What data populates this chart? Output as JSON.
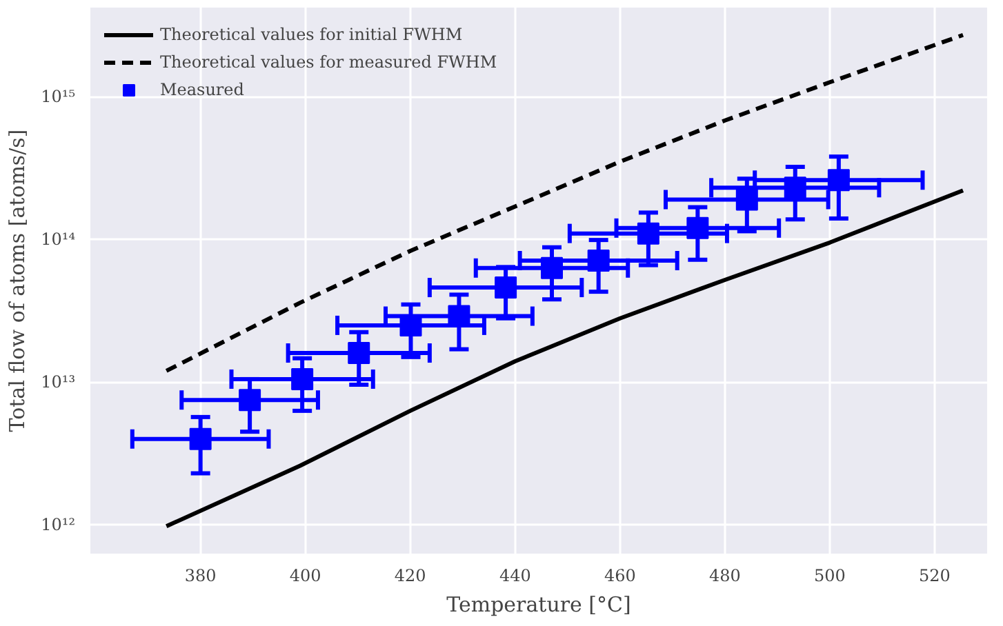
{
  "chart_data": {
    "type": "line",
    "xlabel": "Temperature [°C]",
    "ylabel": "Total flow of atoms [atoms/s]",
    "log": "y",
    "grid": true,
    "legend": "top left",
    "xlim": [
      359,
      530
    ],
    "xticks": [
      380,
      400,
      420,
      440,
      460,
      480,
      500,
      520
    ],
    "ylim": [
      630000000000.0,
      4200000000000000.0
    ],
    "yticks": [
      {
        "value": 1000000000000.0,
        "label": "10¹²"
      },
      {
        "value": 10000000000000.0,
        "label": "10¹³"
      },
      {
        "value": 100000000000000.0,
        "label": "10¹⁴"
      },
      {
        "value": 1000000000000000.0,
        "label": "10¹⁵"
      }
    ],
    "series": [
      {
        "name": "Theoretical values for initial FWHM",
        "line_style": "solid",
        "color": "#000000",
        "x": [
          373.5,
          399,
          420,
          440,
          460,
          480,
          500,
          525.4
        ],
        "values": [
          980000000000.0,
          2600000000000.0,
          6300000000000.0,
          14000000000000.0,
          28000000000000.0,
          52000000000000.0,
          95000000000000.0,
          220000000000000.0
        ]
      },
      {
        "name": "Theoretical values for measured FWHM",
        "line_style": "dashed",
        "color": "#000000",
        "x": [
          373.5,
          399,
          420,
          440,
          460,
          480,
          500,
          525.4
        ],
        "values": [
          12000000000000.0,
          36000000000000.0,
          83000000000000.0,
          170000000000000.0,
          350000000000000.0,
          680000000000000.0,
          1260000000000000.0,
          2700000000000000.0
        ]
      },
      {
        "name": "Measured",
        "type": "scatter",
        "marker": "square",
        "color": "#0000ff",
        "x": [
          380.0,
          389.4,
          399.4,
          410.2,
          420.1,
          429.3,
          438.2,
          447.0,
          455.9,
          465.4,
          474.8,
          484.2,
          493.4,
          501.7
        ],
        "values": [
          4000000000000.0,
          7500000000000.0,
          10500000000000.0,
          16000000000000.0,
          25000000000000.0,
          29000000000000.0,
          46000000000000.0,
          63000000000000.0,
          71000000000000.0,
          110000000000000.0,
          120000000000000.0,
          190000000000000.0,
          230000000000000.0,
          260000000000000.0
        ],
        "errors": [
          1700000000000.0,
          3000000000000.0,
          4200000000000.0,
          6400000000000.0,
          10000000000000.0,
          12000000000000.0,
          18000000000000.0,
          25000000000000.0,
          28000000000000.0,
          44000000000000.0,
          48000000000000.0,
          76000000000000.0,
          92000000000000.0,
          120000000000000.0
        ],
        "xerrors": [
          13,
          13,
          13.5,
          13.5,
          14,
          14,
          14.5,
          14.5,
          15,
          15,
          15.5,
          15.5,
          16,
          16
        ]
      }
    ]
  }
}
